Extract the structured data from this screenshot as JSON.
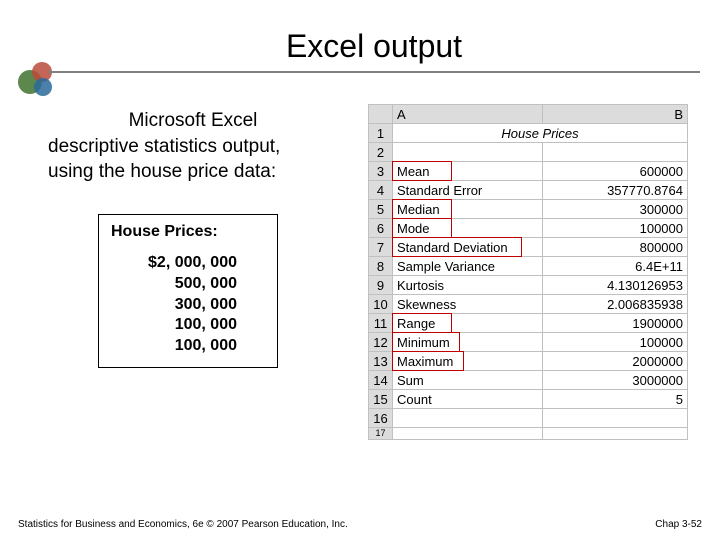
{
  "title": "Excel output",
  "description_lines": [
    "Microsoft Excel",
    "descriptive statistics output,",
    "using the house price data:"
  ],
  "prices_box": {
    "title": "House Prices:",
    "rows": [
      "$2, 000, 000",
      "500, 000",
      "300, 000",
      "100, 000",
      "100, 000"
    ]
  },
  "excel": {
    "col_headers": [
      "A",
      "B"
    ],
    "merged_title": "House Prices",
    "rows": [
      {
        "n": 1,
        "a": "",
        "b": ""
      },
      {
        "n": 2,
        "a": "",
        "b": ""
      },
      {
        "n": 3,
        "a": "Mean",
        "b": "600000"
      },
      {
        "n": 4,
        "a": "Standard Error",
        "b": "357770.8764"
      },
      {
        "n": 5,
        "a": "Median",
        "b": "300000"
      },
      {
        "n": 6,
        "a": "Mode",
        "b": "100000"
      },
      {
        "n": 7,
        "a": "Standard Deviation",
        "b": "800000"
      },
      {
        "n": 8,
        "a": "Sample Variance",
        "b": "6.4E+11"
      },
      {
        "n": 9,
        "a": "Kurtosis",
        "b": "4.130126953"
      },
      {
        "n": 10,
        "a": "Skewness",
        "b": "2.006835938"
      },
      {
        "n": 11,
        "a": "Range",
        "b": "1900000"
      },
      {
        "n": 12,
        "a": "Minimum",
        "b": "100000"
      },
      {
        "n": 13,
        "a": "Maximum",
        "b": "2000000"
      },
      {
        "n": 14,
        "a": "Sum",
        "b": "3000000"
      },
      {
        "n": 15,
        "a": "Count",
        "b": "5"
      },
      {
        "n": 16,
        "a": "",
        "b": ""
      },
      {
        "n": 17,
        "a": "",
        "b": ""
      }
    ],
    "column_widths": {
      "rowhead": 24,
      "A": 150,
      "B": 144
    },
    "colors": {
      "grid": "#c0c0c0",
      "header_bg": "#dcdcdc",
      "redbox": "#c00000"
    },
    "redbox_rows": [
      3,
      5,
      6,
      7,
      11,
      12,
      13
    ]
  },
  "footer": {
    "left": "Statistics for Business and Economics, 6e © 2007 Pearson Education, Inc.",
    "right": "Chap 3-52"
  }
}
